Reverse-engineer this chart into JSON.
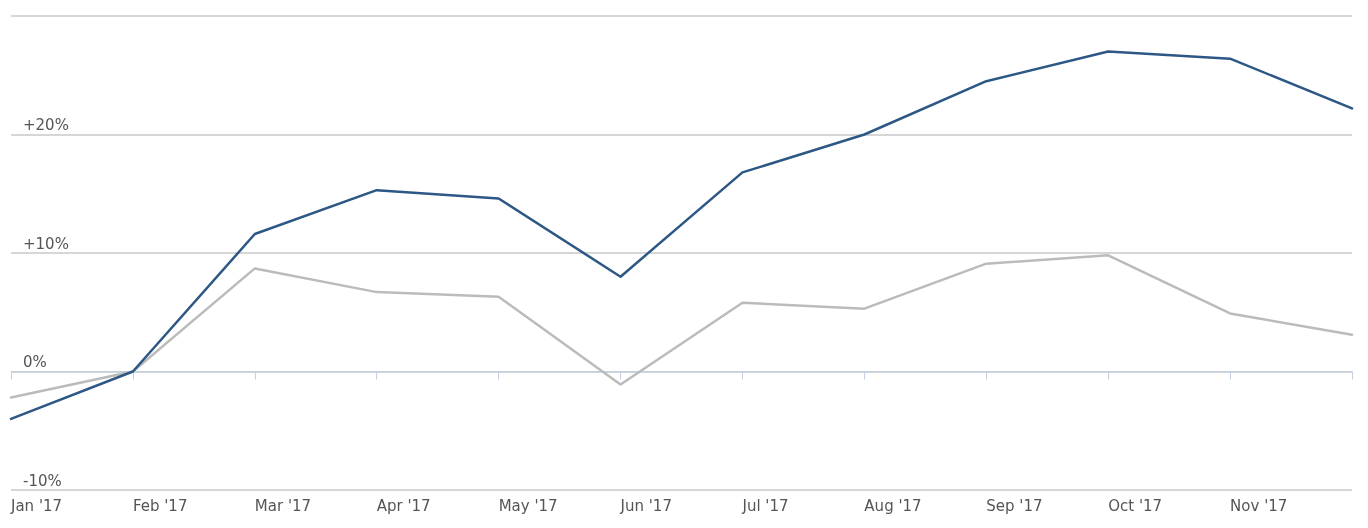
{
  "chart_data": {
    "type": "line",
    "categories": [
      "Jan '17",
      "Feb '17",
      "Mar '17",
      "Apr '17",
      "May '17",
      "Jun '17",
      "Jul '17",
      "Aug '17",
      "Sep '17",
      "Oct '17",
      "Nov '17",
      null
    ],
    "series": [
      {
        "color": "#2d5784",
        "values": [
          -4.0,
          0,
          11.6,
          15.3,
          14.6,
          8.0,
          16.8,
          20.0,
          24.5,
          27.0,
          26.4,
          22.2
        ]
      },
      {
        "color": "#bbbbbb",
        "values": [
          -2.2,
          0,
          8.7,
          6.7,
          6.3,
          -1.1,
          5.8,
          5.3,
          9.1,
          9.8,
          4.9,
          3.1
        ]
      }
    ],
    "ylim": [
      -10,
      30
    ],
    "yticks": [
      {
        "value": -10,
        "label": "-10%"
      },
      {
        "value": 0,
        "label": "0%"
      },
      {
        "value": 10,
        "label": "+10%"
      },
      {
        "value": 20,
        "label": "+20%"
      },
      {
        "value": 30,
        "label": null
      }
    ],
    "grid": "y",
    "marker": "none",
    "line_style": "solid"
  }
}
